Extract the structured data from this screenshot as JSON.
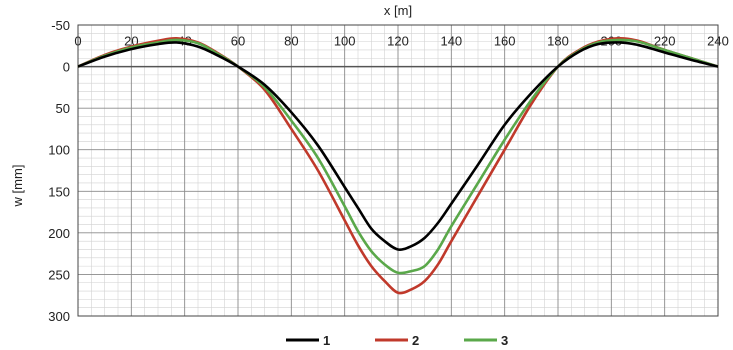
{
  "chart_data": {
    "type": "line",
    "xlabel": "x  [m]",
    "ylabel": "w  [mm]",
    "xlim": [
      0,
      240
    ],
    "ylim": [
      -50,
      300
    ],
    "y_axis_inverted": true,
    "x_axis_position": "top",
    "x_ticks": [
      "0",
      "20",
      "40",
      "60",
      "80",
      "100",
      "120",
      "140",
      "160",
      "180",
      "200",
      "220",
      "240"
    ],
    "y_ticks": [
      "-50",
      "0",
      "50",
      "100",
      "150",
      "200",
      "250",
      "300"
    ],
    "grid": true,
    "legend_position": "bottom",
    "series": [
      {
        "name": "1",
        "color": "#000000",
        "points": [
          [
            0,
            0
          ],
          [
            10,
            -12
          ],
          [
            20,
            -21
          ],
          [
            30,
            -27
          ],
          [
            37,
            -29
          ],
          [
            45,
            -24
          ],
          [
            52,
            -14
          ],
          [
            60,
            0
          ],
          [
            70,
            22
          ],
          [
            80,
            55
          ],
          [
            90,
            95
          ],
          [
            100,
            145
          ],
          [
            105,
            170
          ],
          [
            110,
            195
          ],
          [
            115,
            210
          ],
          [
            120,
            220
          ],
          [
            125,
            216
          ],
          [
            130,
            206
          ],
          [
            135,
            188
          ],
          [
            140,
            165
          ],
          [
            150,
            118
          ],
          [
            160,
            70
          ],
          [
            170,
            32
          ],
          [
            180,
            0
          ],
          [
            188,
            -18
          ],
          [
            195,
            -27
          ],
          [
            203,
            -29
          ],
          [
            210,
            -26
          ],
          [
            220,
            -17
          ],
          [
            230,
            -8
          ],
          [
            240,
            0
          ]
        ]
      },
      {
        "name": "2",
        "color": "#c0392b",
        "points": [
          [
            0,
            0
          ],
          [
            10,
            -14
          ],
          [
            20,
            -24
          ],
          [
            30,
            -31
          ],
          [
            37,
            -34
          ],
          [
            45,
            -29
          ],
          [
            52,
            -17
          ],
          [
            60,
            0
          ],
          [
            70,
            28
          ],
          [
            80,
            75
          ],
          [
            90,
            125
          ],
          [
            100,
            185
          ],
          [
            105,
            215
          ],
          [
            110,
            240
          ],
          [
            115,
            258
          ],
          [
            120,
            272
          ],
          [
            125,
            268
          ],
          [
            130,
            258
          ],
          [
            135,
            238
          ],
          [
            140,
            210
          ],
          [
            150,
            155
          ],
          [
            160,
            100
          ],
          [
            170,
            45
          ],
          [
            180,
            0
          ],
          [
            188,
            -20
          ],
          [
            195,
            -30
          ],
          [
            203,
            -34
          ],
          [
            210,
            -31
          ],
          [
            220,
            -20
          ],
          [
            230,
            -10
          ],
          [
            240,
            0
          ]
        ]
      },
      {
        "name": "3",
        "color": "#5aa84a",
        "points": [
          [
            0,
            0
          ],
          [
            10,
            -13
          ],
          [
            20,
            -23
          ],
          [
            30,
            -29
          ],
          [
            37,
            -32
          ],
          [
            45,
            -28
          ],
          [
            52,
            -16
          ],
          [
            60,
            0
          ],
          [
            70,
            25
          ],
          [
            80,
            65
          ],
          [
            90,
            110
          ],
          [
            100,
            168
          ],
          [
            105,
            198
          ],
          [
            110,
            222
          ],
          [
            115,
            238
          ],
          [
            120,
            248
          ],
          [
            125,
            246
          ],
          [
            130,
            240
          ],
          [
            135,
            220
          ],
          [
            140,
            192
          ],
          [
            150,
            140
          ],
          [
            160,
            88
          ],
          [
            170,
            40
          ],
          [
            180,
            0
          ],
          [
            188,
            -19
          ],
          [
            195,
            -29
          ],
          [
            203,
            -32
          ],
          [
            210,
            -30
          ],
          [
            220,
            -20
          ],
          [
            230,
            -10
          ],
          [
            240,
            0
          ]
        ]
      }
    ]
  }
}
